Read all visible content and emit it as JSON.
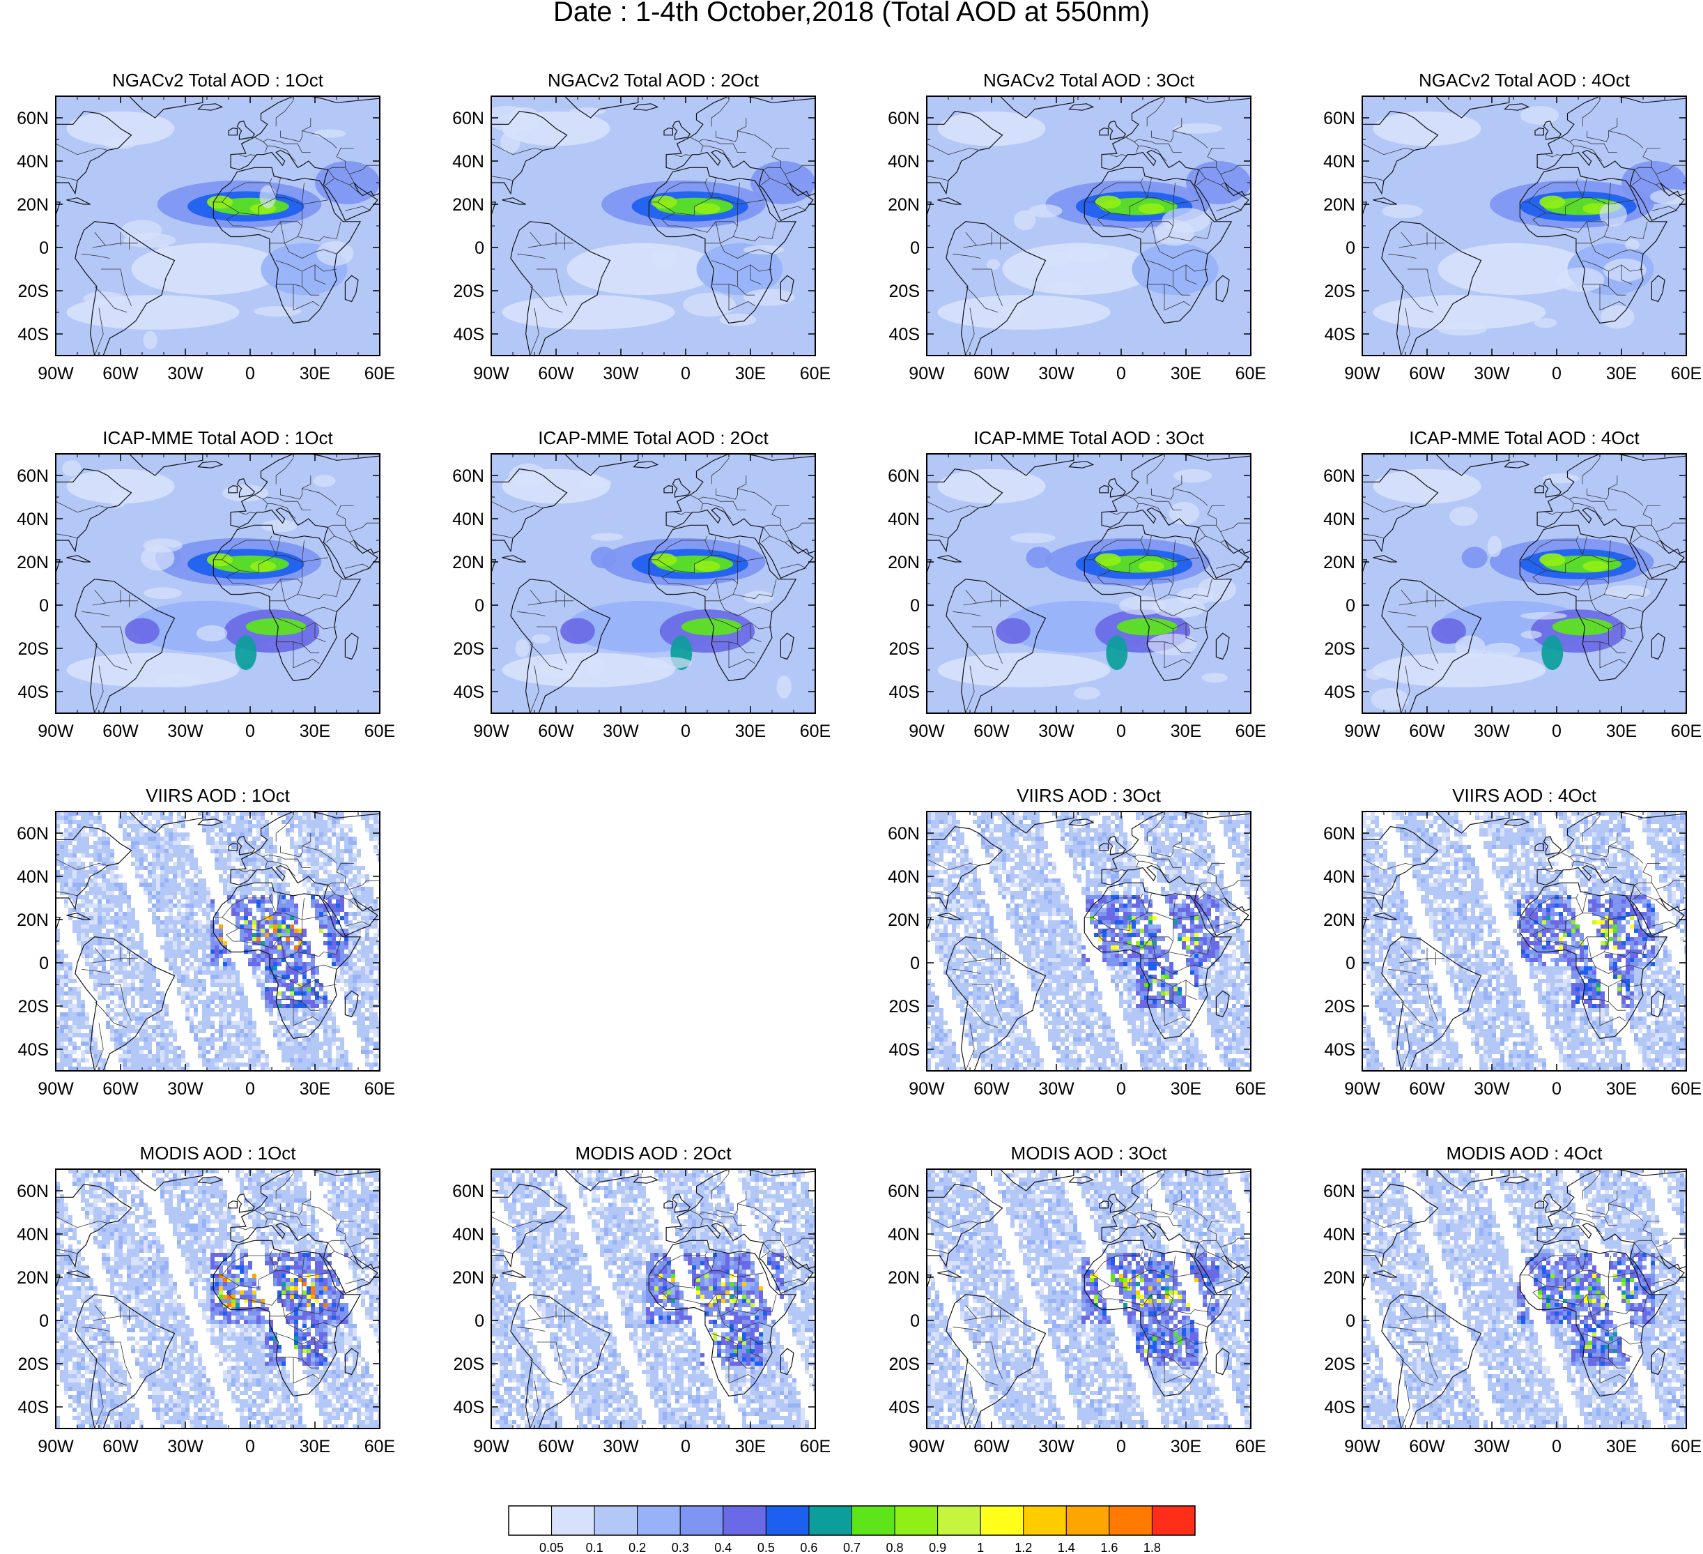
{
  "figure_title": "Date : 1-4th October,2018 (Total AOD at 550nm)",
  "lon_ticks": [
    "90W",
    "60W",
    "30W",
    "0",
    "30E",
    "60E"
  ],
  "lat_ticks": [
    "60N",
    "40N",
    "20N",
    "0",
    "20S",
    "40S"
  ],
  "map_extent": {
    "lon_min": -90,
    "lon_max": 60,
    "lat_min": -50,
    "lat_max": 70
  },
  "colorbar": {
    "colors": [
      "#ffffff",
      "#d7e1fb",
      "#b4c8f8",
      "#97b2f7",
      "#7e96f2",
      "#6a6ae6",
      "#1d60f0",
      "#0c9e9a",
      "#5de51a",
      "#90ef16",
      "#c5f53e",
      "#ffff1b",
      "#ffcc00",
      "#ffa500",
      "#ff7a00",
      "#ff2e18"
    ],
    "labels": [
      "0.05",
      "0.1",
      "0.2",
      "0.3",
      "0.4",
      "0.5",
      "0.6",
      "0.7",
      "0.8",
      "0.9",
      "1",
      "1.2",
      "1.4",
      "1.6",
      "1.8"
    ]
  },
  "panels": [
    {
      "id": "ngac-1",
      "title": "NGACv2 Total AOD : 1Oct",
      "row": 0,
      "col": 0,
      "type": "model",
      "peak_aod": 0.9
    },
    {
      "id": "ngac-2",
      "title": "NGACv2 Total AOD : 2Oct",
      "row": 0,
      "col": 1,
      "type": "model",
      "peak_aod": 0.9
    },
    {
      "id": "ngac-3",
      "title": "NGACv2 Total AOD : 3Oct",
      "row": 0,
      "col": 2,
      "type": "model",
      "peak_aod": 0.9
    },
    {
      "id": "ngac-4",
      "title": "NGACv2 Total AOD : 4Oct",
      "row": 0,
      "col": 3,
      "type": "model",
      "peak_aod": 0.9
    },
    {
      "id": "icap-1",
      "title": "ICAP-MME Total AOD : 1Oct",
      "row": 1,
      "col": 0,
      "type": "model",
      "peak_aod": 0.9
    },
    {
      "id": "icap-2",
      "title": "ICAP-MME Total AOD : 2Oct",
      "row": 1,
      "col": 1,
      "type": "model",
      "peak_aod": 0.9
    },
    {
      "id": "icap-3",
      "title": "ICAP-MME Total AOD : 3Oct",
      "row": 1,
      "col": 2,
      "type": "model",
      "peak_aod": 0.9
    },
    {
      "id": "icap-4",
      "title": "ICAP-MME Total AOD : 4Oct",
      "row": 1,
      "col": 3,
      "type": "model",
      "peak_aod": 0.9
    },
    {
      "id": "viirs-1",
      "title": "VIIRS AOD : 1Oct",
      "row": 2,
      "col": 0,
      "type": "satellite",
      "peak_aod": 1.8
    },
    {
      "id": "viirs-3",
      "title": "VIIRS AOD : 3Oct",
      "row": 2,
      "col": 2,
      "type": "satellite",
      "peak_aod": 1.2
    },
    {
      "id": "viirs-4",
      "title": "VIIRS AOD : 4Oct",
      "row": 2,
      "col": 3,
      "type": "satellite",
      "peak_aod": 1.2
    },
    {
      "id": "modis-1",
      "title": "MODIS AOD : 1Oct",
      "row": 3,
      "col": 0,
      "type": "satellite",
      "peak_aod": 1.8
    },
    {
      "id": "modis-2",
      "title": "MODIS AOD : 2Oct",
      "row": 3,
      "col": 1,
      "type": "satellite",
      "peak_aod": 1.4
    },
    {
      "id": "modis-3",
      "title": "MODIS AOD : 3Oct",
      "row": 3,
      "col": 2,
      "type": "satellite",
      "peak_aod": 1.4
    },
    {
      "id": "modis-4",
      "title": "MODIS AOD : 4Oct",
      "row": 3,
      "col": 3,
      "type": "satellite",
      "peak_aod": 1.2
    }
  ]
}
